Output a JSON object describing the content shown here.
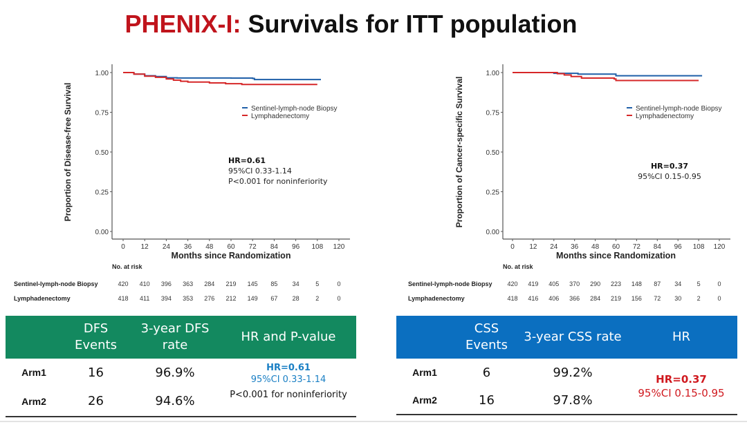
{
  "title": {
    "prefix": "PHENIX-I:",
    "rest": " Survivals for ITT population",
    "prefix_color": "#c0141c"
  },
  "chart_data": [
    {
      "type": "line",
      "ylabel": "Proportion of Disease-free Survival",
      "xlabel": "Months since Randomization",
      "xticks": [
        0,
        12,
        24,
        36,
        48,
        60,
        72,
        84,
        96,
        108,
        120
      ],
      "yticks": [
        "0.00",
        "0.25",
        "0.50",
        "0.75",
        "1.00"
      ],
      "xlim": [
        0,
        120
      ],
      "ylim": [
        0,
        1
      ],
      "legend": "right",
      "series": [
        {
          "name": "Sentinel-lymph-node Biopsy",
          "color": "#1f5fa8",
          "x": [
            0,
            3,
            6,
            12,
            18,
            24,
            30,
            60,
            72,
            73,
            110
          ],
          "y": [
            1,
            1,
            0.99,
            0.98,
            0.975,
            0.967,
            0.966,
            0.965,
            0.963,
            0.956,
            0.956
          ]
        },
        {
          "name": "Lymphadenectomy",
          "color": "#d62728",
          "x": [
            0,
            3,
            6,
            12,
            18,
            24,
            28,
            32,
            36,
            48,
            57,
            66,
            108
          ],
          "y": [
            1,
            1,
            0.99,
            0.977,
            0.97,
            0.96,
            0.952,
            0.945,
            0.94,
            0.935,
            0.93,
            0.925,
            0.925
          ]
        }
      ],
      "annotation": {
        "hr": "HR=0.61",
        "ci": "95%CI 0.33-1.14",
        "p": "P<0.001 for noninferiority"
      },
      "at_risk": {
        "label": "No. at risk",
        "rows": [
          {
            "name": "Sentinel-lymph-node Biopsy",
            "values": [
              420,
              410,
              396,
              363,
              284,
              219,
              145,
              85,
              34,
              5,
              0
            ]
          },
          {
            "name": "Lymphadenectomy",
            "values": [
              418,
              411,
              394,
              353,
              276,
              212,
              149,
              67,
              28,
              2,
              0
            ]
          }
        ]
      }
    },
    {
      "type": "line",
      "ylabel": "Proportion of Cancer-specific Survival",
      "xlabel": "Months since Randomization",
      "xticks": [
        0,
        12,
        24,
        36,
        48,
        60,
        72,
        84,
        96,
        108,
        120
      ],
      "yticks": [
        "0.00",
        "0.25",
        "0.50",
        "0.75",
        "1.00"
      ],
      "xlim": [
        0,
        120
      ],
      "ylim": [
        0,
        1
      ],
      "legend": "right",
      "series": [
        {
          "name": "Sentinel-lymph-node Biopsy",
          "color": "#1f5fa8",
          "x": [
            0,
            22,
            24,
            36,
            38,
            58,
            60,
            110
          ],
          "y": [
            1,
            1,
            0.995,
            0.995,
            0.99,
            0.99,
            0.98,
            0.98
          ]
        },
        {
          "name": "Lymphadenectomy",
          "color": "#d62728",
          "x": [
            0,
            22,
            26,
            30,
            34,
            40,
            59,
            60,
            108
          ],
          "y": [
            1,
            1,
            0.993,
            0.985,
            0.975,
            0.965,
            0.96,
            0.95,
            0.95
          ]
        }
      ],
      "annotation": {
        "hr": "HR=0.37",
        "ci": "95%CI 0.15-0.95"
      },
      "at_risk": {
        "label": "No. at risk",
        "rows": [
          {
            "name": "Sentinel-lymph-node Biopsy",
            "values": [
              420,
              419,
              405,
              370,
              290,
              223,
              148,
              87,
              34,
              5,
              0
            ]
          },
          {
            "name": "Lymphadenectomy",
            "values": [
              418,
              416,
              406,
              366,
              284,
              219,
              156,
              72,
              30,
              2,
              0
            ]
          }
        ]
      }
    }
  ],
  "dfs_table": {
    "headers": [
      "",
      "DFS Events",
      "3-year DFS rate",
      "HR  and P-value"
    ],
    "rows": [
      {
        "arm": "Arm1",
        "events": "16",
        "rate": "96.9%"
      },
      {
        "arm": "Arm2",
        "events": "26",
        "rate": "94.6%"
      }
    ],
    "hr": "HR=0.61",
    "ci": "95%CI 0.33-1.14",
    "p": "P<0.001 for noninferiority",
    "hr_color": "#1a7fc4"
  },
  "css_table": {
    "headers": [
      "",
      "CSS Events",
      "3-year CSS rate",
      "HR"
    ],
    "rows": [
      {
        "arm": "Arm1",
        "events": "6",
        "rate": "99.2%"
      },
      {
        "arm": "Arm2",
        "events": "16",
        "rate": "97.8%"
      }
    ],
    "hr": "HR=0.37",
    "ci": "95%CI 0.15-0.95",
    "hr_color": "#d0191f"
  }
}
